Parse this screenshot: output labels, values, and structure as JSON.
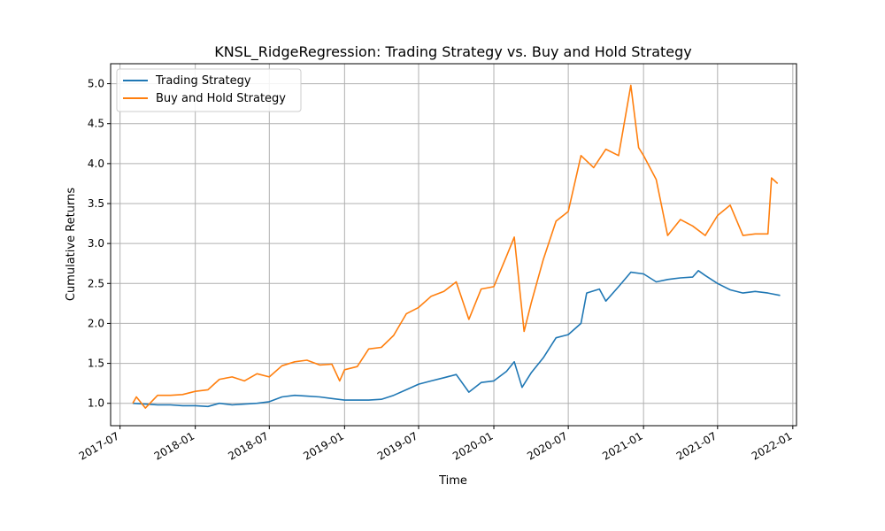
{
  "chart_data": {
    "type": "line",
    "title": "KNSL_RidgeRegression: Trading Strategy vs. Buy and Hold Strategy",
    "xlabel": "Time",
    "ylabel": "Cumulative Returns",
    "xlim": [
      "2017-06-08",
      "2022-01-10"
    ],
    "ylim": [
      0.72,
      5.25
    ],
    "grid": true,
    "legend_position": "top-left",
    "x_ticks": [
      {
        "date": "2017-07-01",
        "label": "2017-07"
      },
      {
        "date": "2018-01-01",
        "label": "2018-01"
      },
      {
        "date": "2018-07-01",
        "label": "2018-07"
      },
      {
        "date": "2019-01-01",
        "label": "2019-01"
      },
      {
        "date": "2019-07-01",
        "label": "2019-07"
      },
      {
        "date": "2020-01-01",
        "label": "2020-01"
      },
      {
        "date": "2020-07-01",
        "label": "2020-07"
      },
      {
        "date": "2021-01-01",
        "label": "2021-01"
      },
      {
        "date": "2021-07-01",
        "label": "2021-07"
      },
      {
        "date": "2022-01-01",
        "label": "2022-01"
      }
    ],
    "y_ticks": [
      {
        "value": 1.0,
        "label": "1.0"
      },
      {
        "value": 1.5,
        "label": "1.5"
      },
      {
        "value": 2.0,
        "label": "2.0"
      },
      {
        "value": 2.5,
        "label": "2.5"
      },
      {
        "value": 3.0,
        "label": "3.0"
      },
      {
        "value": 3.5,
        "label": "3.5"
      },
      {
        "value": 4.0,
        "label": "4.0"
      },
      {
        "value": 4.5,
        "label": "4.5"
      },
      {
        "value": 5.0,
        "label": "5.0"
      }
    ],
    "series": [
      {
        "name": "Trading Strategy",
        "color": "#1f77b4",
        "points": [
          [
            "2017-08-01",
            1.0
          ],
          [
            "2017-09-01",
            0.99
          ],
          [
            "2017-10-01",
            0.98
          ],
          [
            "2017-11-01",
            0.98
          ],
          [
            "2017-12-01",
            0.97
          ],
          [
            "2018-01-01",
            0.97
          ],
          [
            "2018-02-01",
            0.96
          ],
          [
            "2018-03-01",
            1.0
          ],
          [
            "2018-04-01",
            0.98
          ],
          [
            "2018-05-01",
            0.99
          ],
          [
            "2018-06-01",
            1.0
          ],
          [
            "2018-07-01",
            1.02
          ],
          [
            "2018-08-01",
            1.08
          ],
          [
            "2018-09-01",
            1.1
          ],
          [
            "2018-10-01",
            1.09
          ],
          [
            "2018-11-01",
            1.08
          ],
          [
            "2018-12-01",
            1.06
          ],
          [
            "2019-01-01",
            1.04
          ],
          [
            "2019-02-01",
            1.04
          ],
          [
            "2019-03-01",
            1.04
          ],
          [
            "2019-04-01",
            1.05
          ],
          [
            "2019-05-01",
            1.1
          ],
          [
            "2019-06-01",
            1.17
          ],
          [
            "2019-07-01",
            1.24
          ],
          [
            "2019-08-01",
            1.28
          ],
          [
            "2019-09-01",
            1.32
          ],
          [
            "2019-10-01",
            1.36
          ],
          [
            "2019-11-01",
            1.14
          ],
          [
            "2019-12-01",
            1.26
          ],
          [
            "2020-01-01",
            1.28
          ],
          [
            "2020-02-01",
            1.4
          ],
          [
            "2020-02-20",
            1.52
          ],
          [
            "2020-03-10",
            1.2
          ],
          [
            "2020-04-01",
            1.38
          ],
          [
            "2020-05-01",
            1.57
          ],
          [
            "2020-06-01",
            1.82
          ],
          [
            "2020-07-01",
            1.86
          ],
          [
            "2020-08-01",
            2.0
          ],
          [
            "2020-08-15",
            2.38
          ],
          [
            "2020-09-15",
            2.43
          ],
          [
            "2020-10-01",
            2.28
          ],
          [
            "2020-11-01",
            2.46
          ],
          [
            "2020-12-01",
            2.64
          ],
          [
            "2021-01-01",
            2.62
          ],
          [
            "2021-02-01",
            2.52
          ],
          [
            "2021-03-01",
            2.55
          ],
          [
            "2021-04-01",
            2.57
          ],
          [
            "2021-05-01",
            2.58
          ],
          [
            "2021-05-15",
            2.66
          ],
          [
            "2021-06-01",
            2.6
          ],
          [
            "2021-07-01",
            2.5
          ],
          [
            "2021-08-01",
            2.42
          ],
          [
            "2021-09-01",
            2.38
          ],
          [
            "2021-10-01",
            2.4
          ],
          [
            "2021-11-01",
            2.38
          ],
          [
            "2021-12-01",
            2.35
          ]
        ]
      },
      {
        "name": "Buy and Hold Strategy",
        "color": "#ff7f0e",
        "points": [
          [
            "2017-08-01",
            1.0
          ],
          [
            "2017-08-10",
            1.08
          ],
          [
            "2017-09-01",
            0.94
          ],
          [
            "2017-10-01",
            1.1
          ],
          [
            "2017-11-01",
            1.1
          ],
          [
            "2017-12-01",
            1.11
          ],
          [
            "2018-01-01",
            1.15
          ],
          [
            "2018-02-01",
            1.17
          ],
          [
            "2018-03-01",
            1.3
          ],
          [
            "2018-04-01",
            1.33
          ],
          [
            "2018-05-01",
            1.28
          ],
          [
            "2018-06-01",
            1.37
          ],
          [
            "2018-07-01",
            1.33
          ],
          [
            "2018-08-01",
            1.47
          ],
          [
            "2018-09-01",
            1.52
          ],
          [
            "2018-10-01",
            1.54
          ],
          [
            "2018-11-01",
            1.48
          ],
          [
            "2018-12-01",
            1.49
          ],
          [
            "2018-12-20",
            1.28
          ],
          [
            "2019-01-01",
            1.42
          ],
          [
            "2019-02-01",
            1.46
          ],
          [
            "2019-03-01",
            1.68
          ],
          [
            "2019-04-01",
            1.7
          ],
          [
            "2019-05-01",
            1.85
          ],
          [
            "2019-06-01",
            2.12
          ],
          [
            "2019-07-01",
            2.2
          ],
          [
            "2019-08-01",
            2.34
          ],
          [
            "2019-09-01",
            2.4
          ],
          [
            "2019-10-01",
            2.52
          ],
          [
            "2019-11-01",
            2.05
          ],
          [
            "2019-12-01",
            2.43
          ],
          [
            "2020-01-01",
            2.46
          ],
          [
            "2020-02-01",
            2.84
          ],
          [
            "2020-02-20",
            3.08
          ],
          [
            "2020-03-15",
            1.9
          ],
          [
            "2020-04-01",
            2.25
          ],
          [
            "2020-05-01",
            2.8
          ],
          [
            "2020-06-01",
            3.28
          ],
          [
            "2020-07-01",
            3.4
          ],
          [
            "2020-08-01",
            4.1
          ],
          [
            "2020-09-01",
            3.95
          ],
          [
            "2020-10-01",
            4.18
          ],
          [
            "2020-11-01",
            4.1
          ],
          [
            "2020-12-01",
            4.98
          ],
          [
            "2020-12-20",
            4.2
          ],
          [
            "2021-01-01",
            4.1
          ],
          [
            "2021-02-01",
            3.8
          ],
          [
            "2021-03-01",
            3.1
          ],
          [
            "2021-04-01",
            3.3
          ],
          [
            "2021-05-01",
            3.22
          ],
          [
            "2021-06-01",
            3.1
          ],
          [
            "2021-07-01",
            3.35
          ],
          [
            "2021-08-01",
            3.48
          ],
          [
            "2021-09-01",
            3.1
          ],
          [
            "2021-10-01",
            3.12
          ],
          [
            "2021-11-01",
            3.12
          ],
          [
            "2021-11-10",
            3.82
          ],
          [
            "2021-11-25",
            3.75
          ]
        ]
      }
    ]
  }
}
